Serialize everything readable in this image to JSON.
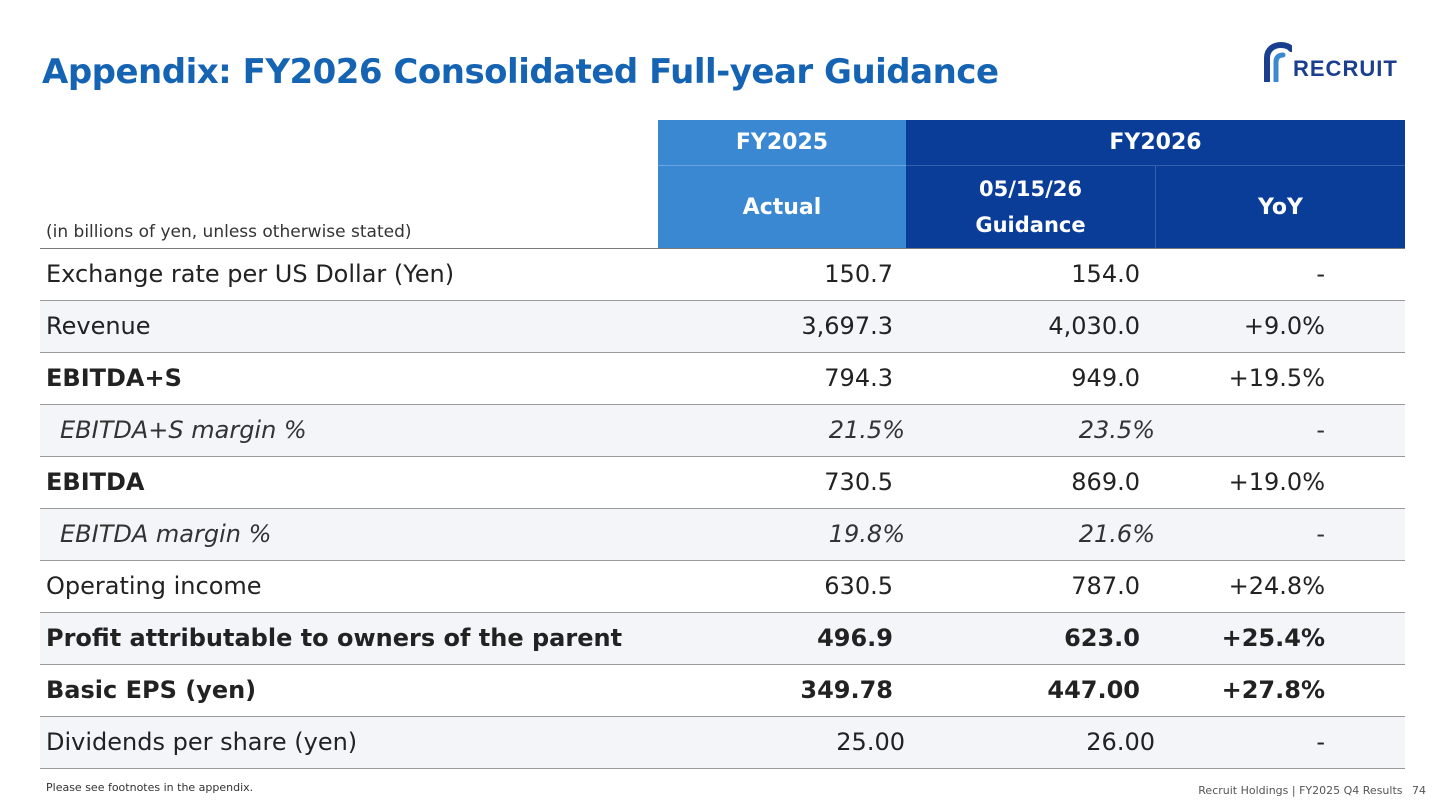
{
  "title": "Appendix: FY2026 Consolidated Full-year Guidance",
  "logo": {
    "text": "RECRUIT",
    "icon": "recruit-r-logo-icon",
    "color": "#1a3f8f"
  },
  "header": {
    "fy2025": "FY2025",
    "actual": "Actual",
    "fy2026": "FY2026",
    "guidance_date": "05/15/26",
    "guidance": "Guidance",
    "yoy": "YoY",
    "unit_note": "(in billions of yen, unless otherwise stated)",
    "colors": {
      "fy2025_bg": "#3a87d2",
      "fy2026_bg": "#0a3d97"
    }
  },
  "rows": [
    {
      "label": "Exchange rate per US Dollar (Yen)",
      "actual": "150.7",
      "guidance": "154.0",
      "yoy": "-"
    },
    {
      "label": "Revenue",
      "actual": "3,697.3",
      "guidance": "4,030.0",
      "yoy": "+9.0%"
    },
    {
      "label": "EBITDA+S",
      "actual": "794.3",
      "guidance": "949.0",
      "yoy": "+19.5%"
    },
    {
      "label": "EBITDA+S margin %",
      "actual": "21.5%",
      "guidance": "23.5%",
      "yoy": "-"
    },
    {
      "label": "EBITDA",
      "actual": "730.5",
      "guidance": "869.0",
      "yoy": "+19.0%"
    },
    {
      "label": "EBITDA margin %",
      "actual": "19.8%",
      "guidance": "21.6%",
      "yoy": "-"
    },
    {
      "label": "Operating income",
      "actual": "630.5",
      "guidance": "787.0",
      "yoy": "+24.8%"
    },
    {
      "label": "Profit attributable to owners of the parent",
      "actual": "496.9",
      "guidance": "623.0",
      "yoy": "+25.4%"
    },
    {
      "label": "Basic EPS (yen)",
      "actual": "349.78",
      "guidance": "447.00",
      "yoy": "+27.8%"
    },
    {
      "label": "Dividends per share (yen)",
      "actual": "25.00",
      "guidance": "26.00",
      "yoy": "-"
    }
  ],
  "footnote": "Please see footnotes in the appendix.",
  "footer": {
    "text": "Recruit Holdings | FY2025 Q4 Results",
    "page": "74"
  }
}
